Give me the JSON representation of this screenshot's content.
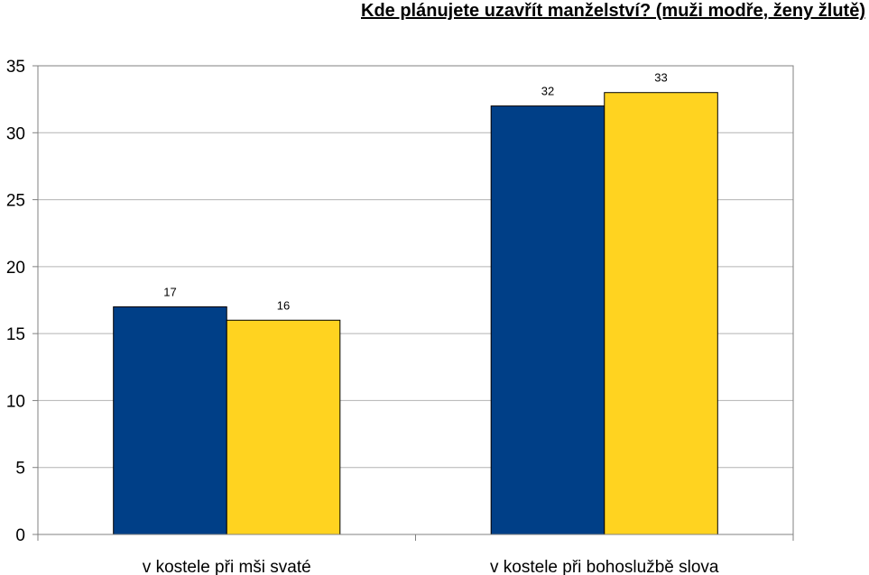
{
  "chart_data": {
    "type": "bar",
    "title": "Kde plánujete uzavřít manželství? (muži modře, ženy žlutě)",
    "categories": [
      "v kostele při mši svaté",
      "v kostele při bohoslužbě slova"
    ],
    "series": [
      {
        "values": [
          17,
          32
        ],
        "color": "#003F87"
      },
      {
        "values": [
          16,
          33
        ],
        "color": "#FFD320"
      }
    ],
    "ylim": [
      0,
      35
    ],
    "yticks": [
      0,
      5,
      10,
      15,
      20,
      25,
      30,
      35
    ],
    "grid": true,
    "legend": "none",
    "data_labels": true
  }
}
